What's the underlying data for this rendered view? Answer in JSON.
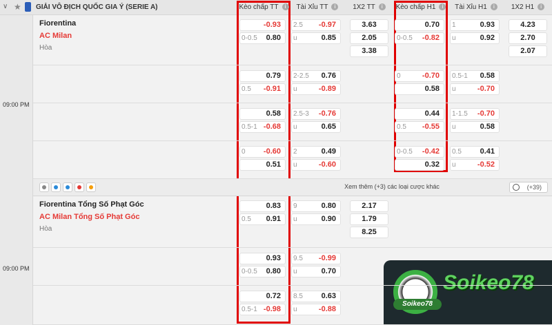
{
  "header": {
    "league": "GIẢI VÔ ĐỊCH QUỐC GIA Ý (SERIE A)",
    "columns": [
      "Kèo chấp TT",
      "Tài Xỉu TT",
      "1X2 TT",
      "Kèo chấp H1",
      "Tài Xỉu H1",
      "1X2 H1"
    ]
  },
  "matches": [
    {
      "time": "09:00 PM",
      "home": "Fiorentina",
      "away": "AC Milan",
      "draw": "Hòa",
      "rows": [
        {
          "hdp_ft": [
            {
              "odds": "-0.93"
            },
            {
              "line": "0-0.5",
              "odds": "0.80"
            }
          ],
          "ou_ft": [
            {
              "line": "2.5",
              "odds": "-0.97"
            },
            {
              "line": "u",
              "odds": "0.85"
            }
          ],
          "x12_ft": [
            "3.63",
            "2.05",
            "3.38"
          ],
          "hdp_h1": [
            {
              "odds": "0.70"
            },
            {
              "line": "0-0.5",
              "odds": "-0.82"
            }
          ],
          "ou_h1": [
            {
              "line": "1",
              "odds": "0.93"
            },
            {
              "line": "u",
              "odds": "0.92"
            }
          ],
          "x12_h1": [
            "4.23",
            "2.70",
            "2.07"
          ]
        },
        {
          "hdp_ft": [
            {
              "odds": "0.79"
            },
            {
              "line": "0.5",
              "odds": "-0.91"
            }
          ],
          "ou_ft": [
            {
              "line": "2-2.5",
              "odds": "0.76"
            },
            {
              "line": "u",
              "odds": "-0.89"
            }
          ],
          "hdp_h1": [
            {
              "line": "0",
              "odds": "-0.70"
            },
            {
              "odds": "0.58"
            }
          ],
          "ou_h1": [
            {
              "line": "0.5-1",
              "odds": "0.58"
            },
            {
              "line": "u",
              "odds": "-0.70"
            }
          ]
        },
        {
          "hdp_ft": [
            {
              "odds": "0.58"
            },
            {
              "line": "0.5-1",
              "odds": "-0.68"
            }
          ],
          "ou_ft": [
            {
              "line": "2.5-3",
              "odds": "-0.76"
            },
            {
              "line": "u",
              "odds": "0.65"
            }
          ],
          "hdp_h1": [
            {
              "odds": "0.44"
            },
            {
              "line": "0.5",
              "odds": "-0.55"
            }
          ],
          "ou_h1": [
            {
              "line": "1-1.5",
              "odds": "-0.70"
            },
            {
              "line": "u",
              "odds": "0.58"
            }
          ]
        },
        {
          "hdp_ft": [
            {
              "line": "0",
              "odds": "-0.60"
            },
            {
              "odds": "0.51"
            }
          ],
          "ou_ft": [
            {
              "line": "2",
              "odds": "0.49"
            },
            {
              "line": "u",
              "odds": "-0.60"
            }
          ],
          "hdp_h1": [
            {
              "line": "0-0.5",
              "odds": "-0.42"
            },
            {
              "odds": "0.32"
            }
          ],
          "ou_h1": [
            {
              "line": "0.5",
              "odds": "0.41"
            },
            {
              "line": "u",
              "odds": "-0.52"
            }
          ]
        }
      ],
      "footer": {
        "more": "Xem thêm (+3) các loại cược khác",
        "count": "(+39)"
      }
    },
    {
      "time": "09:00 PM",
      "home": "Fiorentina Tổng Số Phạt Góc",
      "away": "AC Milan Tổng Số Phạt Góc",
      "draw": "Hòa",
      "rows": [
        {
          "hdp_ft": [
            {
              "odds": "0.83"
            },
            {
              "line": "0.5",
              "odds": "0.91"
            }
          ],
          "ou_ft": [
            {
              "line": "9",
              "odds": "0.80"
            },
            {
              "line": "u",
              "odds": "0.90"
            }
          ],
          "x12_ft": [
            "2.17",
            "1.79",
            "8.25"
          ]
        },
        {
          "hdp_ft": [
            {
              "odds": "0.93"
            },
            {
              "line": "0-0.5",
              "odds": "0.80"
            }
          ],
          "ou_ft": [
            {
              "line": "9.5",
              "odds": "-0.99"
            },
            {
              "line": "u",
              "odds": "0.70"
            }
          ]
        },
        {
          "hdp_ft": [
            {
              "odds": "0.72"
            },
            {
              "line": "0.5-1",
              "odds": "-0.98"
            }
          ],
          "ou_ft": [
            {
              "line": "8.5",
              "odds": "0.63"
            },
            {
              "line": "u",
              "odds": "-0.88"
            }
          ]
        }
      ]
    }
  ],
  "watermark": {
    "title": "Soikeo78",
    "badge": "Soikeo78"
  }
}
